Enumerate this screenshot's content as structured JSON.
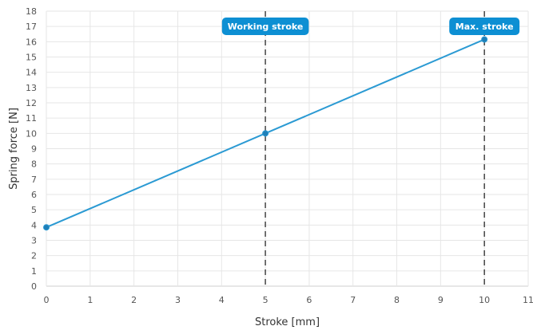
{
  "chart_data": {
    "type": "line",
    "xlabel": "Stroke [mm]",
    "ylabel": "Spring force [N]",
    "xlim": [
      0,
      11
    ],
    "ylim": [
      0,
      18
    ],
    "x_ticks": [
      0,
      1,
      2,
      3,
      4,
      5,
      6,
      7,
      8,
      9,
      10,
      11
    ],
    "y_ticks": [
      0,
      1,
      2,
      3,
      4,
      5,
      6,
      7,
      8,
      9,
      10,
      11,
      12,
      13,
      14,
      15,
      16,
      17,
      18
    ],
    "grid": true,
    "series": [
      {
        "color": "#2b9ad3",
        "points": [
          {
            "x": 0,
            "y": 3.85
          },
          {
            "x": 5,
            "y": 10.0
          },
          {
            "x": 10,
            "y": 16.15
          }
        ]
      }
    ],
    "reference_lines": [
      {
        "x": 5,
        "label": "Working stroke"
      },
      {
        "x": 10,
        "label": "Max. stroke"
      }
    ],
    "colors": {
      "line": "#2b9ad3",
      "marker_fill": "#1f7fb8",
      "label_bg": "#0d8fd3",
      "reference_line": "#444444",
      "grid": "#e6e6e6"
    }
  }
}
